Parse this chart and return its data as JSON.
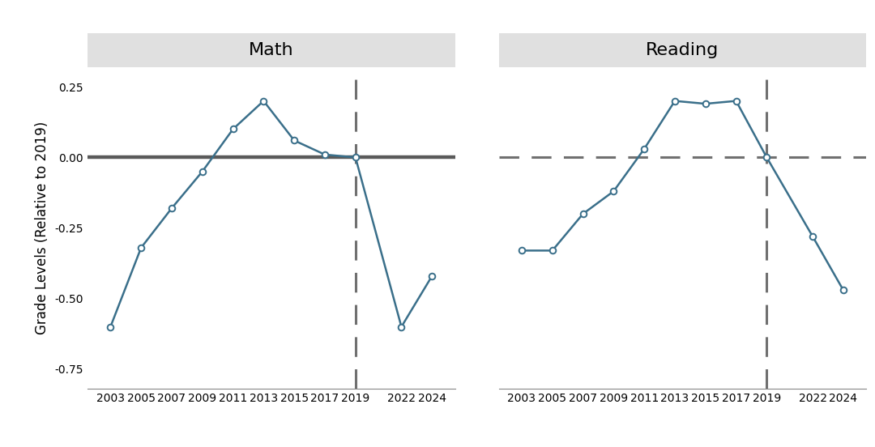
{
  "math_years": [
    2003,
    2005,
    2007,
    2009,
    2011,
    2013,
    2015,
    2017,
    2019,
    2022,
    2024
  ],
  "math_values": [
    -0.6,
    -0.32,
    -0.18,
    -0.05,
    0.1,
    0.2,
    0.06,
    0.01,
    0.0,
    -0.6,
    -0.42
  ],
  "reading_years": [
    2003,
    2005,
    2007,
    2009,
    2011,
    2013,
    2015,
    2017,
    2019,
    2022,
    2024
  ],
  "reading_values": [
    -0.33,
    -0.33,
    -0.2,
    -0.12,
    0.03,
    0.2,
    0.19,
    0.2,
    0.0,
    -0.28,
    -0.47
  ],
  "line_color": "#3a6f8a",
  "zero_line_color": "#5a5a5a",
  "dashed_line_color": "#707070",
  "marker_facecolor": "white",
  "marker_edgecolor": "#3a6f8a",
  "marker_size": 5.5,
  "marker_linewidth": 1.4,
  "line_width": 1.8,
  "panel_bg": "#e0e0e0",
  "plot_bg": "white",
  "title_math": "Math",
  "title_reading": "Reading",
  "ylabel": "Grade Levels (Relative to 2019)",
  "ylim": [
    -0.82,
    0.32
  ],
  "yticks": [
    -0.75,
    -0.5,
    -0.25,
    0.0,
    0.25
  ],
  "ytick_labels": [
    "-0.75",
    "-0.50",
    "-0.25",
    "0.00",
    "0.25"
  ],
  "xticks": [
    2003,
    2005,
    2007,
    2009,
    2011,
    2013,
    2015,
    2017,
    2019,
    2022,
    2024
  ],
  "xlim": [
    2001.5,
    2025.5
  ],
  "vline_x": 2019,
  "zero_line_lw": 3.2,
  "dashed_lw": 2.2,
  "title_fontsize": 16,
  "ylabel_fontsize": 12,
  "tick_fontsize": 10
}
